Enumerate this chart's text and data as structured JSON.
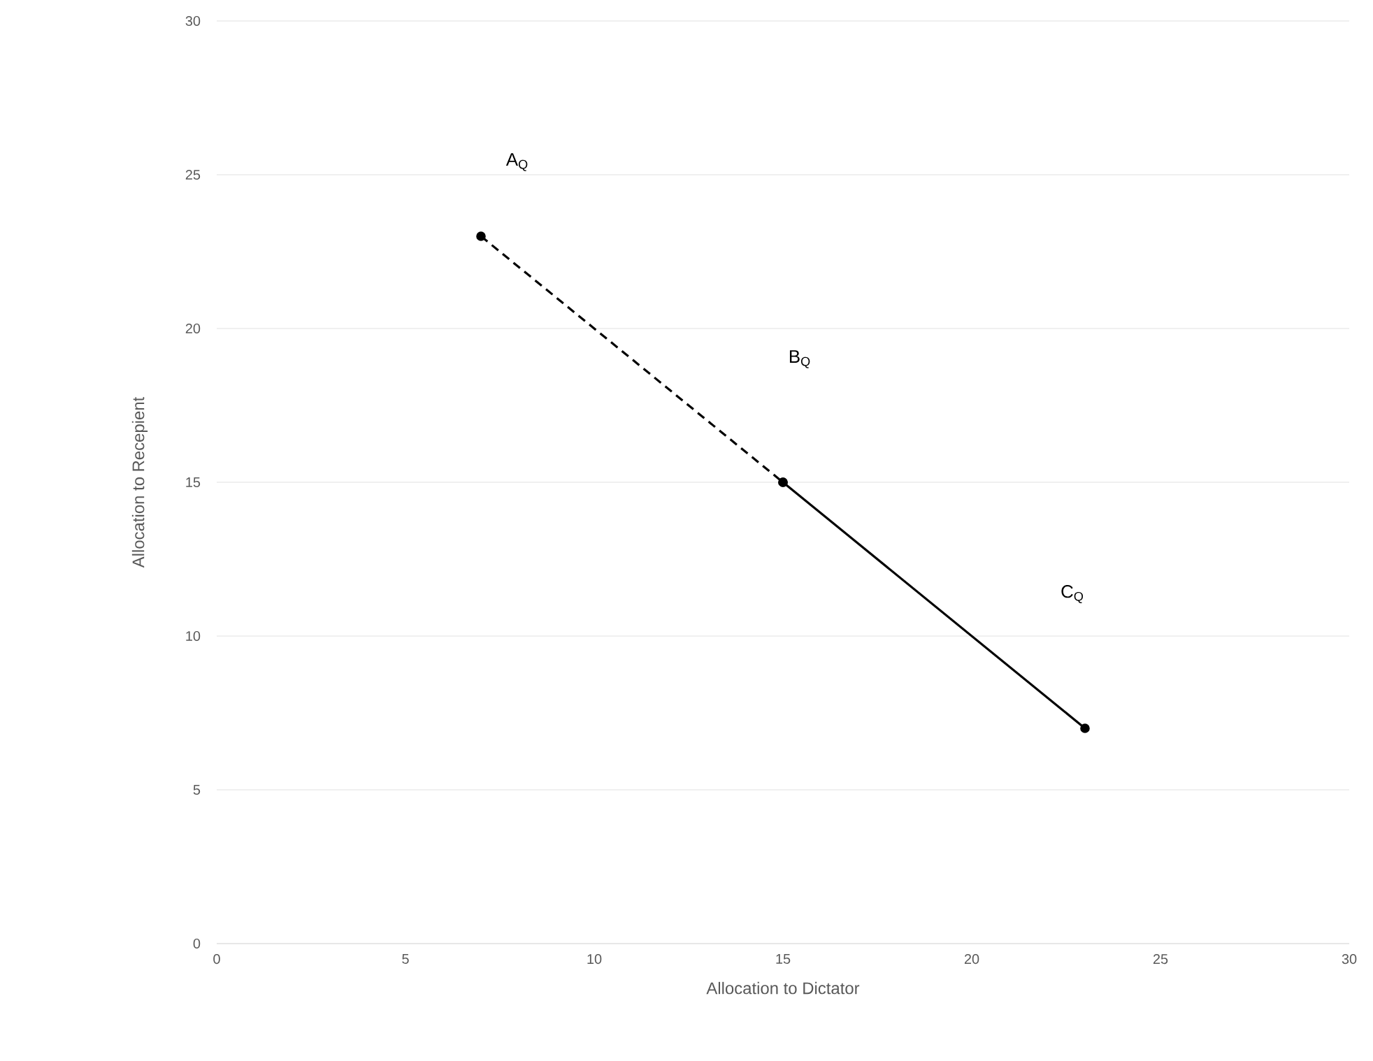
{
  "chart_data": {
    "type": "line",
    "xlabel": "Allocation to Dictator",
    "ylabel": "Allocation to Recepient",
    "xlim": [
      0,
      30
    ],
    "ylim": [
      0,
      30
    ],
    "xticks": [
      0,
      5,
      10,
      15,
      20,
      25,
      30
    ],
    "yticks": [
      0,
      5,
      10,
      15,
      20,
      25,
      30
    ],
    "grid": "y",
    "marker": "circle",
    "series": [
      {
        "color": "#000000",
        "line_style": "dashed",
        "x": [
          7,
          15
        ],
        "values": [
          23,
          15
        ]
      },
      {
        "color": "#000000",
        "line_style": "solid",
        "x": [
          15,
          23
        ],
        "values": [
          15,
          7
        ]
      }
    ],
    "annotations": [
      "A$_{Q}$",
      "B$_{Q}$",
      "C$_{Q}$"
    ]
  }
}
